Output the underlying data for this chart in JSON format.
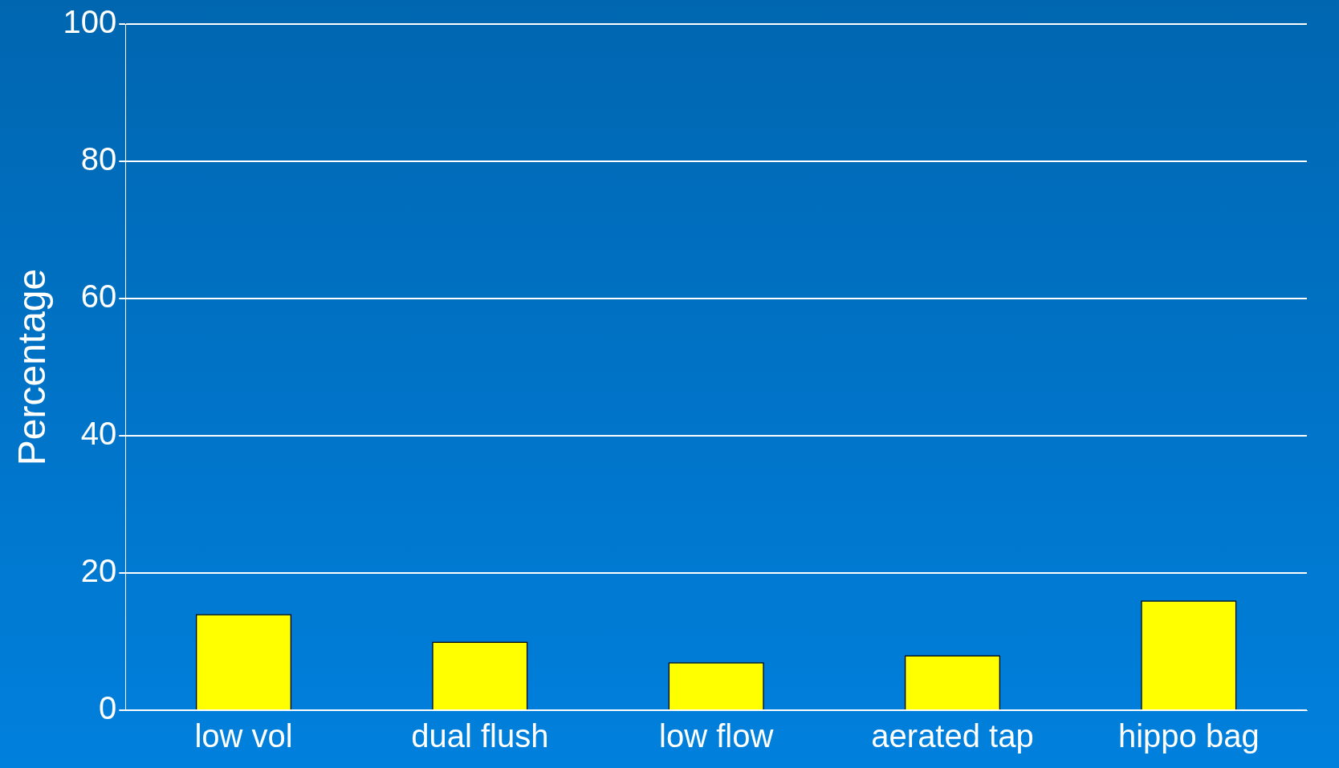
{
  "chart_data": {
    "type": "bar",
    "ylabel": "Percentage",
    "categories": [
      "low vol",
      "dual flush",
      "low flow",
      "aerated tap",
      "hippo bag"
    ],
    "values": [
      14,
      10,
      7,
      8,
      16
    ],
    "color": "#ffff00",
    "ylim": [
      0,
      100
    ],
    "yticks": [
      0,
      20,
      40,
      60,
      80,
      100
    ],
    "grid": "y"
  }
}
